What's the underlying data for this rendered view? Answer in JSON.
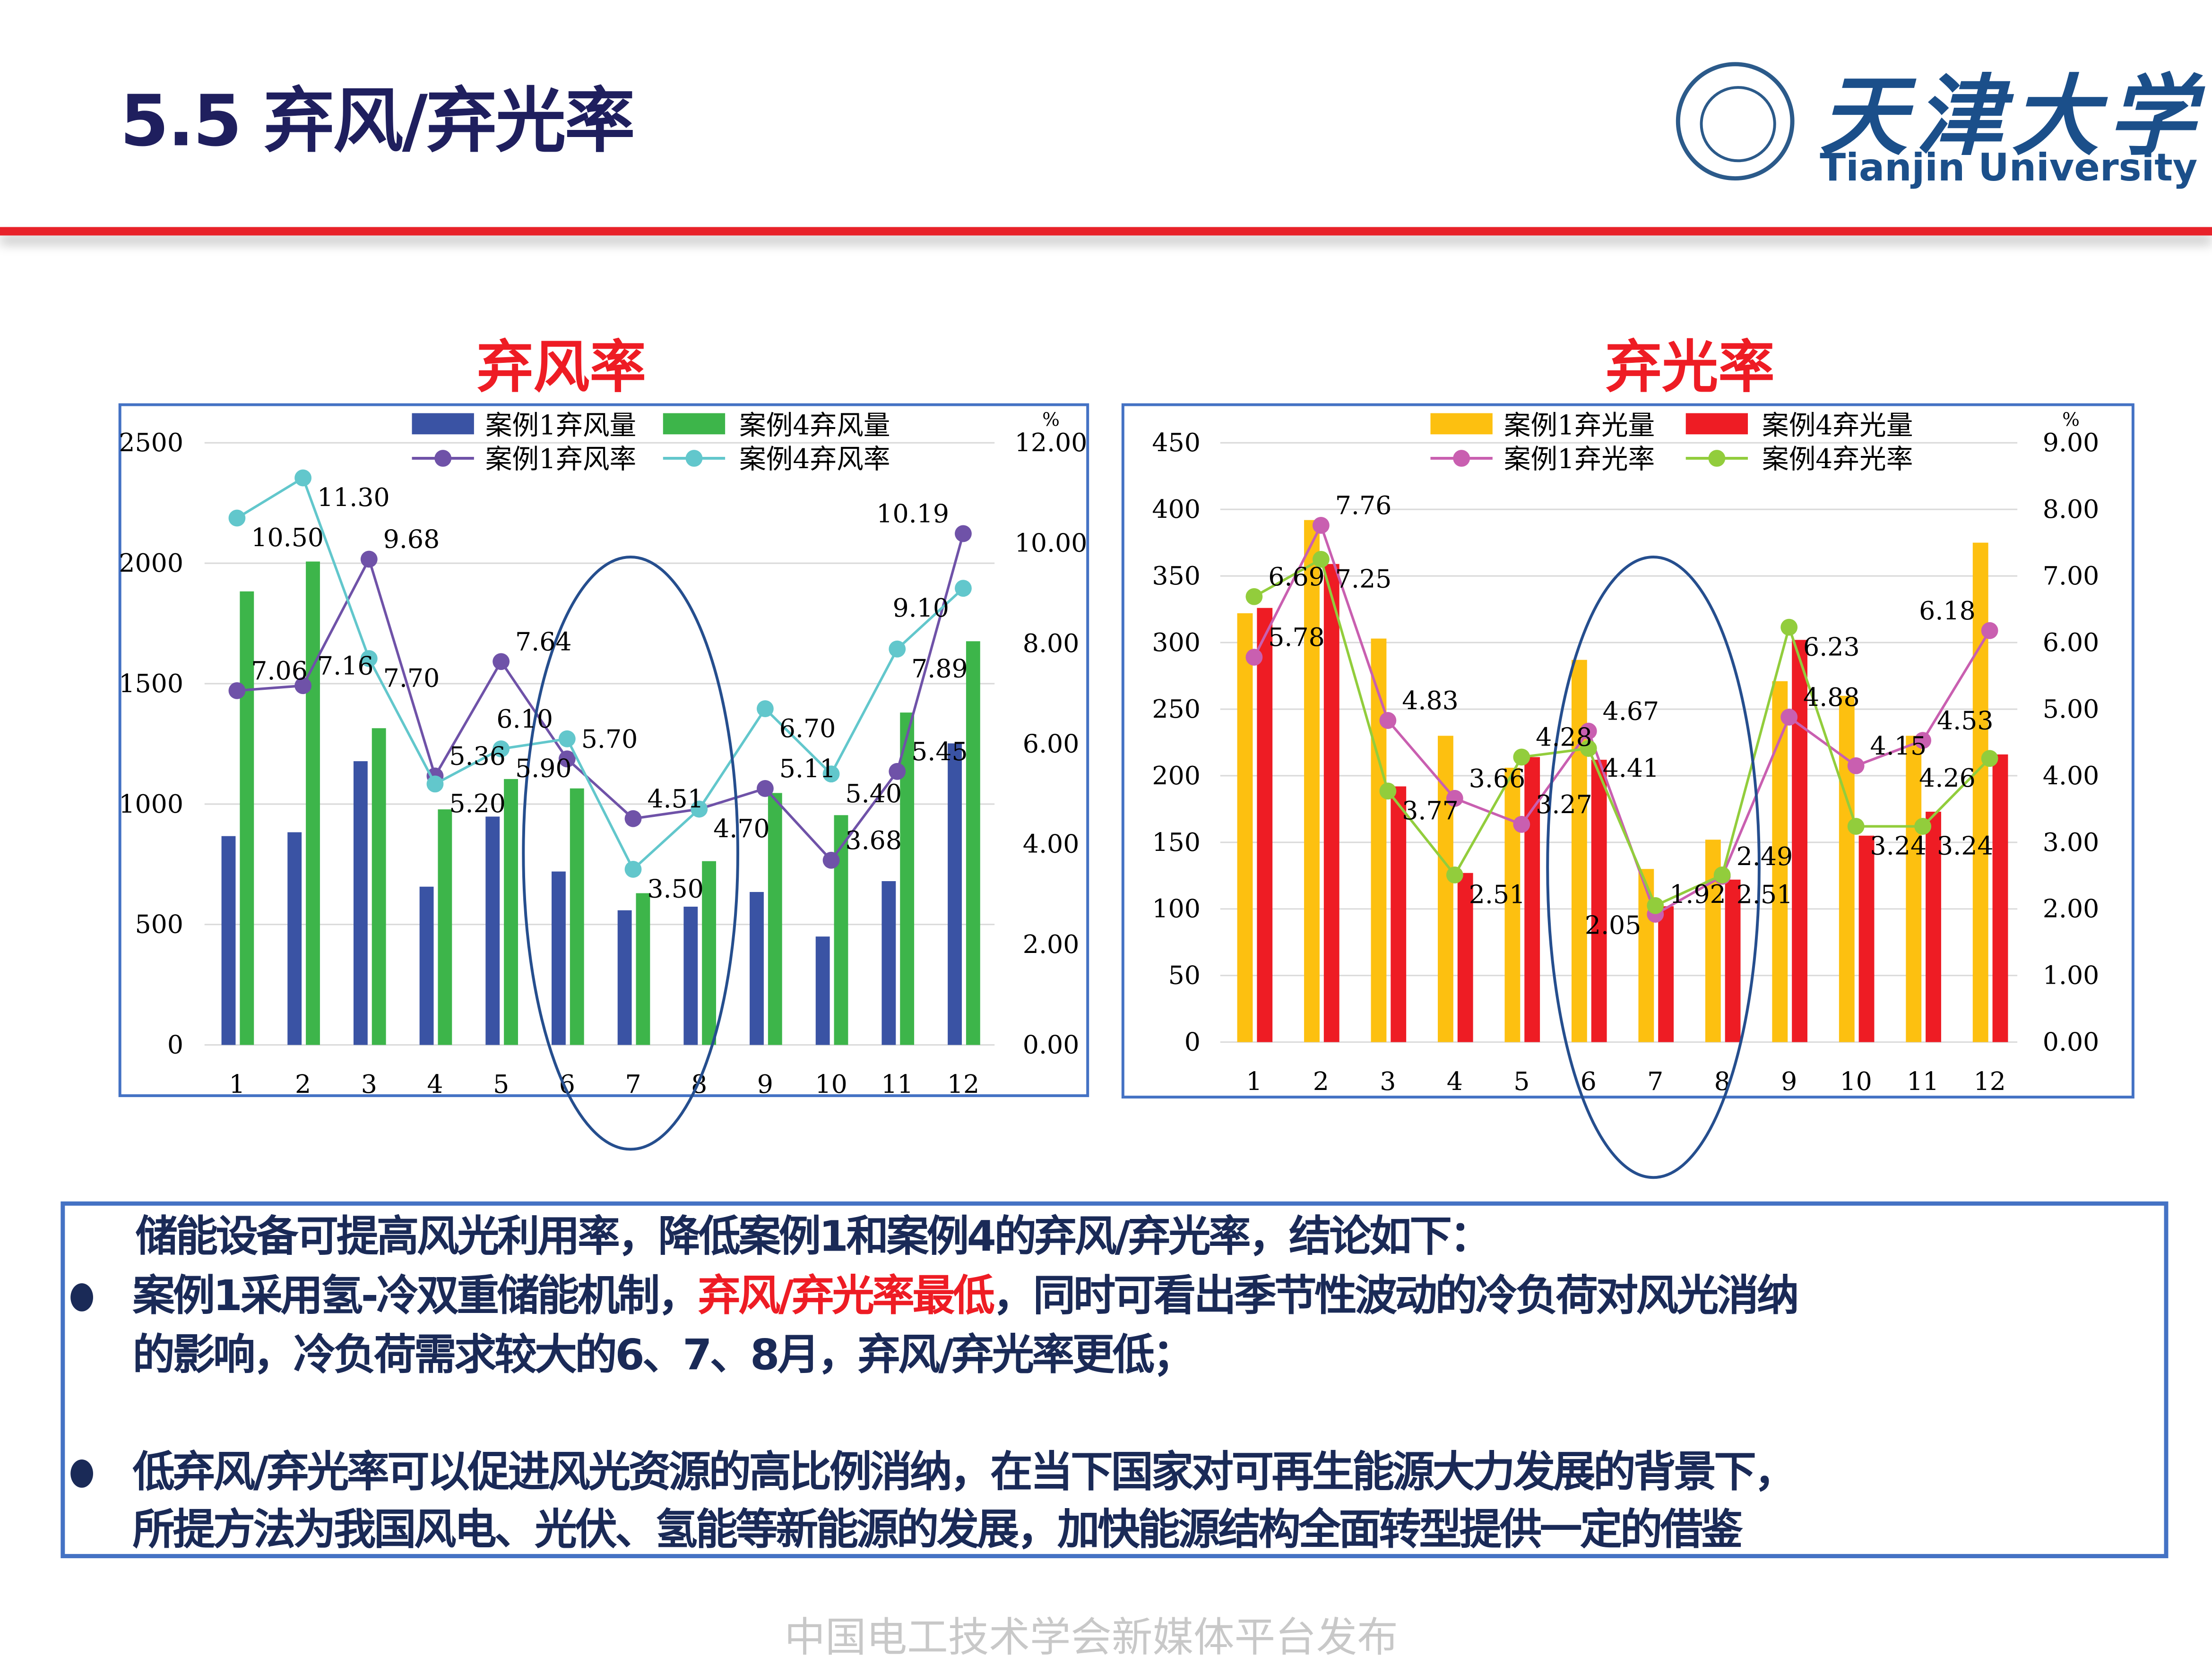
{
  "header": {
    "title": "5.5 弃风/弃光率",
    "logo_cn": "天津大学",
    "logo_en": "Tianjin University"
  },
  "colors": {
    "accent_red": "#ee1c24",
    "title_navy": "#1f1f5e",
    "frame_blue": "#4472c4"
  },
  "chart_data": [
    {
      "type": "bar+line",
      "title": "弃风率",
      "categories": [
        "1",
        "2",
        "3",
        "4",
        "5",
        "6",
        "7",
        "8",
        "9",
        "10",
        "11",
        "12"
      ],
      "y_left": {
        "ticks": [
          "0",
          "500",
          "1000",
          "1500",
          "2000",
          "2500"
        ],
        "range": [
          0,
          2500
        ]
      },
      "y_right": {
        "unit": "%",
        "ticks": [
          "0.00",
          "2.00",
          "4.00",
          "6.00",
          "8.00",
          "10.00",
          "12.00"
        ],
        "range": [
          0,
          12
        ]
      },
      "grid": true,
      "legend": "top",
      "bars": [
        {
          "name": "案例1弃风量",
          "color": "#3a53a4",
          "values": [
            867,
            883,
            1178,
            657,
            948,
            720,
            559,
            574,
            635,
            450,
            680,
            1252
          ]
        },
        {
          "name": "案例4弃风量",
          "color": "#3db54a",
          "values": [
            1883,
            2007,
            1315,
            978,
            1104,
            1065,
            630,
            763,
            1046,
            954,
            1380,
            1676
          ]
        }
      ],
      "lines": [
        {
          "name": "案例1弃风率",
          "color": "#6f52a8",
          "values": [
            7.06,
            7.16,
            9.68,
            5.36,
            7.64,
            5.7,
            4.51,
            4.7,
            5.11,
            3.68,
            5.45,
            10.19
          ],
          "labels": [
            "7.06",
            "7.16",
            "9.68",
            "5.36",
            "7.64",
            "5.70",
            "4.51",
            "",
            "5.11",
            "3.68",
            "5.45",
            "10.19"
          ]
        },
        {
          "name": "案例4弃风率",
          "color": "#62c7cc",
          "values": [
            10.5,
            11.3,
            7.7,
            5.2,
            5.9,
            6.1,
            3.5,
            4.7,
            6.7,
            5.4,
            7.89,
            9.1
          ],
          "labels": [
            "10.50",
            "11.30",
            "7.70",
            "5.20",
            "5.90",
            "6.10",
            "3.50",
            "4.70",
            "6.70",
            "5.40",
            "7.89",
            "9.10"
          ]
        }
      ]
    },
    {
      "type": "bar+line",
      "title": "弃光率",
      "categories": [
        "1",
        "2",
        "3",
        "4",
        "5",
        "6",
        "7",
        "8",
        "9",
        "10",
        "11",
        "12"
      ],
      "y_left": {
        "ticks": [
          "0",
          "50",
          "100",
          "150",
          "200",
          "250",
          "300",
          "350",
          "400",
          "450"
        ],
        "range": [
          0,
          450
        ]
      },
      "y_right": {
        "unit": "%",
        "ticks": [
          "0.00",
          "1.00",
          "2.00",
          "3.00",
          "4.00",
          "5.00",
          "6.00",
          "7.00",
          "8.00",
          "9.00"
        ],
        "range": [
          0,
          9
        ]
      },
      "grid": true,
      "legend": "top",
      "bars": [
        {
          "name": "案例1弃光量",
          "color": "#fdc010",
          "values": [
            322,
            392,
            303,
            230,
            206,
            287,
            130,
            152,
            271,
            260,
            230,
            375
          ]
        },
        {
          "name": "案例4弃光量",
          "color": "#ee1c24",
          "values": [
            326,
            359,
            192,
            127,
            214,
            212,
            102,
            122,
            302,
            155,
            173,
            216
          ]
        }
      ],
      "lines": [
        {
          "name": "案例1弃光率",
          "color": "#c95fb0",
          "values": [
            5.78,
            7.76,
            4.83,
            3.66,
            3.27,
            4.67,
            1.92,
            2.49,
            4.88,
            4.15,
            4.53,
            6.18
          ],
          "labels": [
            "5.78",
            "7.76",
            "4.83",
            "3.66",
            "3.27",
            "4.67",
            "1.92",
            "2.49",
            "4.88",
            "4.15",
            "4.53",
            "6.18"
          ]
        },
        {
          "name": "案例4弃光率",
          "color": "#92cd3c",
          "values": [
            6.69,
            7.25,
            3.77,
            2.51,
            4.28,
            4.41,
            2.05,
            2.51,
            6.23,
            3.24,
            3.24,
            4.26
          ],
          "labels": [
            "6.69",
            "7.25",
            "3.77",
            "2.51",
            "4.28",
            "4.41",
            "2.05",
            "2.51",
            "6.23",
            "3.24",
            "3.24",
            "4.26"
          ]
        }
      ]
    }
  ],
  "conclusion": {
    "intro": "储能设备可提高风光利用率，降低案例1和案例4的弃风/弃光率，结论如下：",
    "b1_pre": "案例1采用氢-冷双重储能机制，",
    "b1_red": "弃风/弃光率最低",
    "b1_post": "，同时可看出季节性波动的冷负荷对风光消纳",
    "b1_line2": "的影响，冷负荷需求较大的6、7、8月，弃风/弃光率更低；",
    "b2_line1": "低弃风/弃光率可以促进风光资源的高比例消纳，在当下国家对可再生能源大力发展的背景下，",
    "b2_line2": "所提方法为我国风电、光伏、氢能等新能源的发展，加快能源结构全面转型提供一定的借鉴"
  },
  "footer": "中国电工技术学会新媒体平台发布"
}
